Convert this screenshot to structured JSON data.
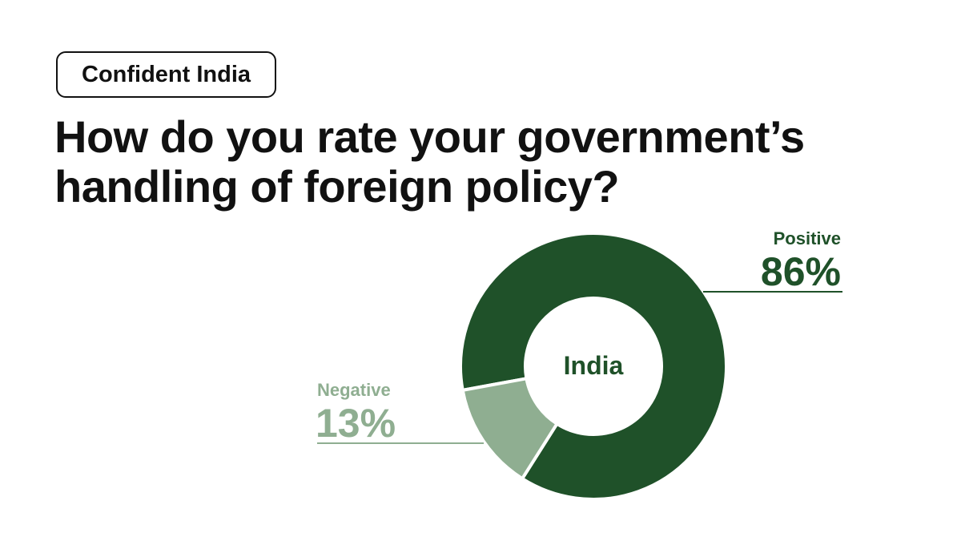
{
  "header": {
    "tag": "Confident India",
    "question": "How do you rate your government’s handling of foreign policy?"
  },
  "colors": {
    "positive": "#1f5129",
    "negative": "#8fae91",
    "text": "#111111"
  },
  "chart_data": {
    "type": "pie",
    "variant": "donut",
    "center_label": "India",
    "categories": [
      "Positive",
      "Negative"
    ],
    "values": [
      86,
      13
    ],
    "value_labels": [
      "86%",
      "13%"
    ],
    "legend": "none"
  }
}
